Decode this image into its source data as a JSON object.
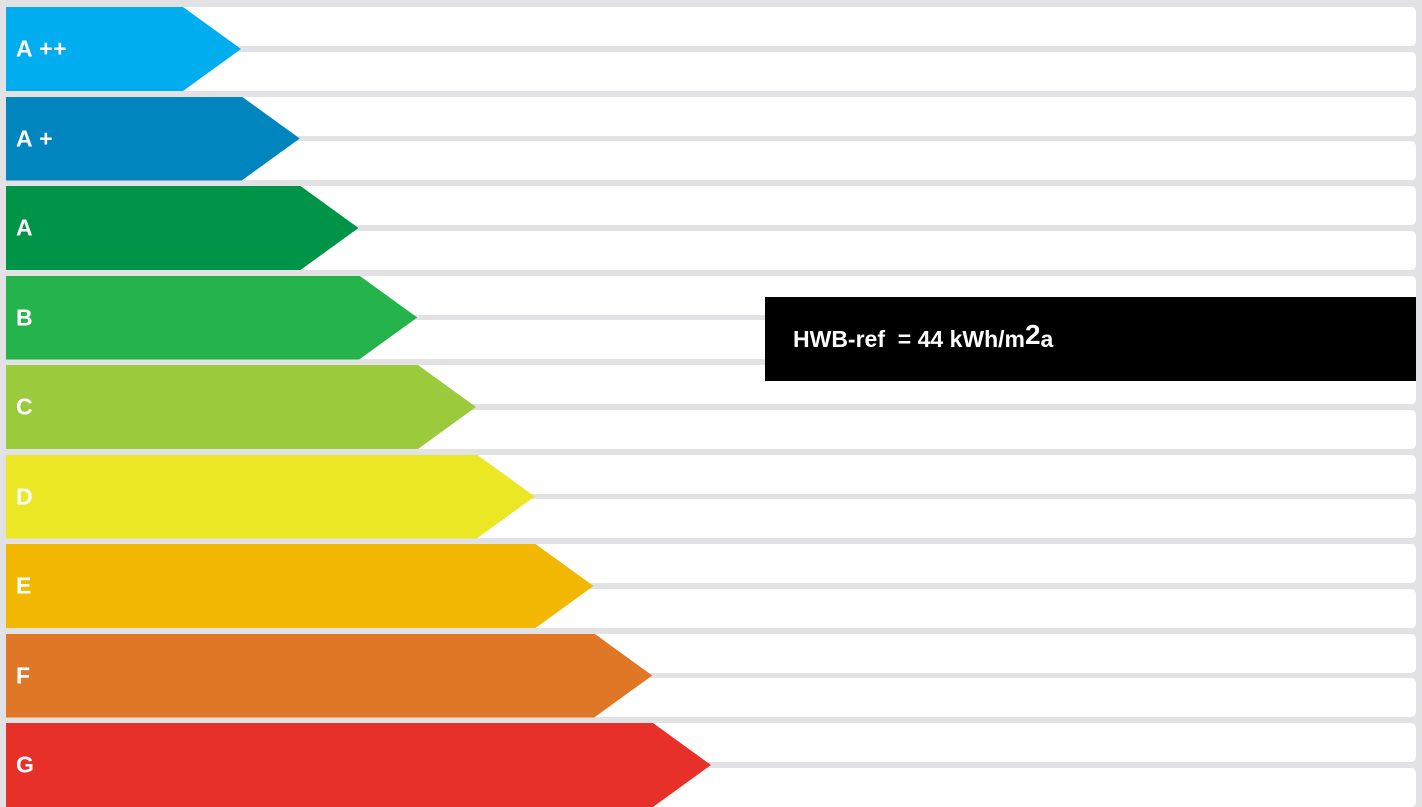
{
  "chart_data": {
    "type": "bar",
    "categories": [
      "A ++",
      "A +",
      "A",
      "B",
      "C",
      "D",
      "E",
      "F",
      "G"
    ],
    "colors": [
      "#00adef",
      "#0085be",
      "#009448",
      "#25b34b",
      "#9bcb3c",
      "#ebe724",
      "#f2b801",
      "#e07726",
      "#e8302a"
    ],
    "rating": {
      "label": "HWB-ref  = 44 kWh/m",
      "superscript": "2",
      "suffix": "a"
    }
  }
}
